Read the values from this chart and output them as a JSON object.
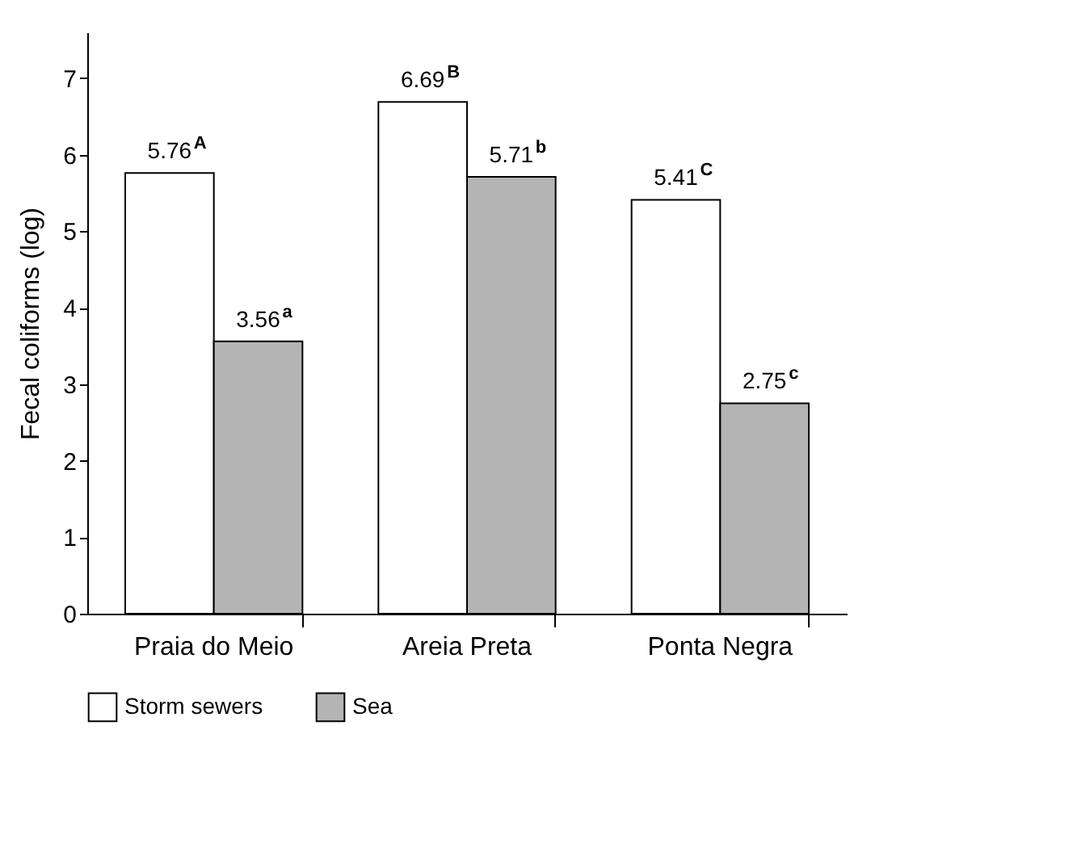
{
  "chart_data": {
    "type": "bar",
    "ylabel": "Fecal coliforms  (log)",
    "categories": [
      "Praia do Meio",
      "Areia Preta",
      "Ponta Negra"
    ],
    "series": [
      {
        "name": "Storm sewers",
        "color": "#ffffff",
        "values": [
          5.76,
          6.69,
          5.41
        ],
        "value_labels": [
          "5.76$^{A}$",
          "6.69$^{B}$",
          "5.41$^{C}$"
        ]
      },
      {
        "name": "Sea",
        "color": "#b4b4b4",
        "values": [
          3.56,
          5.71,
          2.75
        ],
        "value_labels": [
          "3.56$^{a}$",
          "5.71$^{b}$",
          "2.75$^{c}$"
        ]
      }
    ],
    "ylim": [
      0,
      7.6
    ],
    "yticks": [
      0,
      1,
      2,
      3,
      4,
      5,
      6,
      7
    ],
    "grid": false,
    "legend": "bottom"
  }
}
